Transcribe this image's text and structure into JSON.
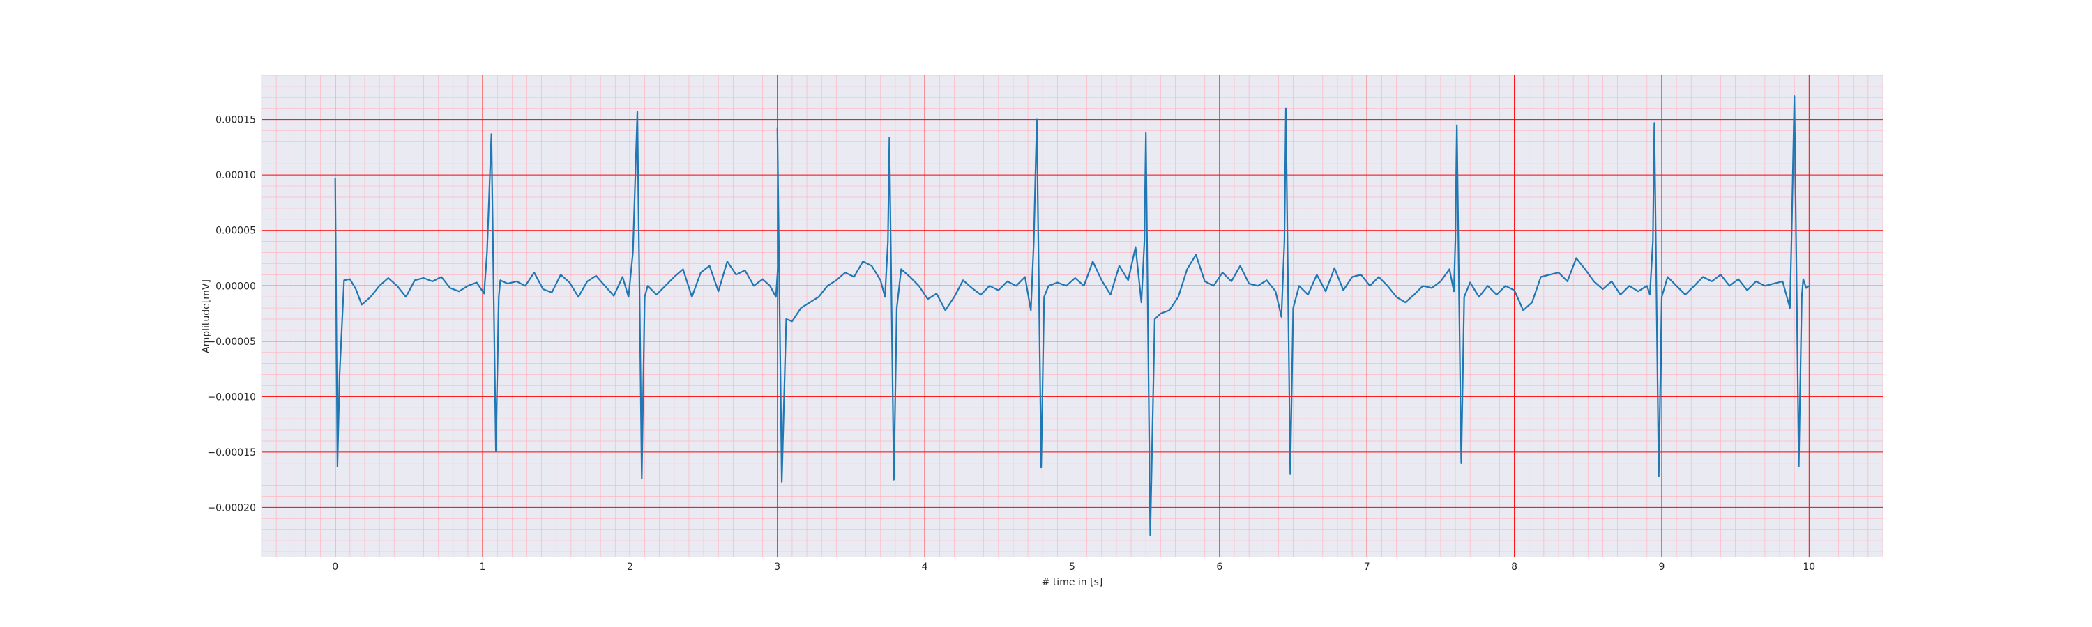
{
  "chart_data": {
    "type": "line",
    "title": "",
    "xlabel": "# time in [s]",
    "ylabel": "Amplitude[mV]",
    "xlim": [
      -0.5,
      10.5
    ],
    "ylim": [
      -0.000245,
      0.00019
    ],
    "xticks": [
      0,
      1,
      2,
      3,
      4,
      5,
      6,
      7,
      8,
      9,
      10
    ],
    "xtick_labels": [
      "0",
      "1",
      "2",
      "3",
      "4",
      "5",
      "6",
      "7",
      "8",
      "9",
      "10"
    ],
    "yticks": [
      -0.0002,
      -0.00015,
      -0.0001,
      -5e-05,
      0.0,
      5e-05,
      0.0001,
      0.00015
    ],
    "ytick_labels": [
      "−0.00020",
      "−0.00015",
      "−0.00010",
      "−0.00005",
      "0.00000",
      "0.00005",
      "0.00010",
      "0.00015"
    ],
    "grid": true,
    "major_grid_color": "#ff0000",
    "minor_grid_color": "#ffb6c1",
    "background_color": "#eaeaf2",
    "line_color": "#1f77b4",
    "series": [
      {
        "values": [
          [
            0.0,
            9.7e-05
          ],
          [
            0.015,
            -0.000163
          ],
          [
            0.03,
            -8e-05
          ],
          [
            0.06,
            5e-06
          ],
          [
            0.1,
            6e-06
          ],
          [
            0.14,
            -3e-06
          ],
          [
            0.18,
            -1.7e-05
          ],
          [
            0.24,
            -1e-05
          ],
          [
            0.3,
            0.0
          ],
          [
            0.36,
            7e-06
          ],
          [
            0.42,
            0.0
          ],
          [
            0.48,
            -1e-05
          ],
          [
            0.54,
            5e-06
          ],
          [
            0.6,
            7e-06
          ],
          [
            0.66,
            4e-06
          ],
          [
            0.72,
            8e-06
          ],
          [
            0.78,
            -2e-06
          ],
          [
            0.84,
            -5e-06
          ],
          [
            0.9,
            0.0
          ],
          [
            0.96,
            3e-06
          ],
          [
            1.01,
            -7e-06
          ],
          [
            1.03,
            3e-05
          ],
          [
            1.06,
            0.000137
          ],
          [
            1.09,
            -0.000149
          ],
          [
            1.11,
            -1e-05
          ],
          [
            1.12,
            5e-06
          ],
          [
            1.17,
            2e-06
          ],
          [
            1.23,
            4e-06
          ],
          [
            1.29,
            0.0
          ],
          [
            1.35,
            1.2e-05
          ],
          [
            1.41,
            -3e-06
          ],
          [
            1.47,
            -6e-06
          ],
          [
            1.53,
            1e-05
          ],
          [
            1.59,
            3e-06
          ],
          [
            1.65,
            -1e-05
          ],
          [
            1.71,
            4e-06
          ],
          [
            1.77,
            9e-06
          ],
          [
            1.83,
            0.0
          ],
          [
            1.89,
            -9e-06
          ],
          [
            1.95,
            8e-06
          ],
          [
            1.99,
            -1e-05
          ],
          [
            2.02,
            3e-05
          ],
          [
            2.05,
            0.000157
          ],
          [
            2.08,
            -0.000174
          ],
          [
            2.1,
            -1e-05
          ],
          [
            2.12,
            0.0
          ],
          [
            2.18,
            -8e-06
          ],
          [
            2.24,
            0.0
          ],
          [
            2.3,
            8e-06
          ],
          [
            2.36,
            1.5e-05
          ],
          [
            2.42,
            -1e-05
          ],
          [
            2.48,
            1.2e-05
          ],
          [
            2.54,
            1.8e-05
          ],
          [
            2.6,
            -5e-06
          ],
          [
            2.66,
            2.2e-05
          ],
          [
            2.72,
            1e-05
          ],
          [
            2.78,
            1.4e-05
          ],
          [
            2.84,
            0.0
          ],
          [
            2.9,
            6e-06
          ],
          [
            2.95,
            0.0
          ],
          [
            2.99,
            -1e-05
          ],
          [
            3.01,
            3e-05
          ],
          [
            3.0,
            0.000142
          ],
          [
            3.03,
            -0.000177
          ],
          [
            3.06,
            -3e-05
          ],
          [
            3.1,
            -3.2e-05
          ],
          [
            3.16,
            -2e-05
          ],
          [
            3.22,
            -1.5e-05
          ],
          [
            3.28,
            -1e-05
          ],
          [
            3.34,
            0.0
          ],
          [
            3.4,
            5e-06
          ],
          [
            3.46,
            1.2e-05
          ],
          [
            3.52,
            8e-06
          ],
          [
            3.58,
            2.2e-05
          ],
          [
            3.64,
            1.8e-05
          ],
          [
            3.7,
            5e-06
          ],
          [
            3.73,
            -1e-05
          ],
          [
            3.75,
            4e-05
          ],
          [
            3.76,
            0.000134
          ],
          [
            3.79,
            -0.000175
          ],
          [
            3.81,
            -2e-05
          ],
          [
            3.84,
            1.5e-05
          ],
          [
            3.9,
            8e-06
          ],
          [
            3.96,
            0.0
          ],
          [
            4.02,
            -1.2e-05
          ],
          [
            4.08,
            -7e-06
          ],
          [
            4.14,
            -2.2e-05
          ],
          [
            4.2,
            -1e-05
          ],
          [
            4.26,
            5e-06
          ],
          [
            4.32,
            -2e-06
          ],
          [
            4.38,
            -8e-06
          ],
          [
            4.44,
            0.0
          ],
          [
            4.5,
            -4e-06
          ],
          [
            4.56,
            4e-06
          ],
          [
            4.62,
            0.0
          ],
          [
            4.68,
            8e-06
          ],
          [
            4.72,
            -2.2e-05
          ],
          [
            4.74,
            4e-05
          ],
          [
            4.76,
            0.00015
          ],
          [
            4.79,
            -0.000164
          ],
          [
            4.81,
            -1e-05
          ],
          [
            4.84,
            0.0
          ],
          [
            4.9,
            3e-06
          ],
          [
            4.96,
            0.0
          ],
          [
            5.02,
            7e-06
          ],
          [
            5.08,
            0.0
          ],
          [
            5.14,
            2.2e-05
          ],
          [
            5.2,
            5e-06
          ],
          [
            5.26,
            -8e-06
          ],
          [
            5.32,
            1.8e-05
          ],
          [
            5.38,
            5e-06
          ],
          [
            5.43,
            3.5e-05
          ],
          [
            5.47,
            -1.5e-05
          ],
          [
            5.49,
            4e-05
          ],
          [
            5.5,
            0.000138
          ],
          [
            5.53,
            -0.000225
          ],
          [
            5.56,
            -3e-05
          ],
          [
            5.6,
            -2.5e-05
          ],
          [
            5.66,
            -2.2e-05
          ],
          [
            5.72,
            -1e-05
          ],
          [
            5.78,
            1.5e-05
          ],
          [
            5.84,
            2.8e-05
          ],
          [
            5.9,
            4e-06
          ],
          [
            5.96,
            0.0
          ],
          [
            6.02,
            1.2e-05
          ],
          [
            6.08,
            4e-06
          ],
          [
            6.14,
            1.8e-05
          ],
          [
            6.2,
            2e-06
          ],
          [
            6.26,
            0.0
          ],
          [
            6.32,
            5e-06
          ],
          [
            6.38,
            -5e-06
          ],
          [
            6.42,
            -2.8e-05
          ],
          [
            6.44,
            4e-05
          ],
          [
            6.45,
            0.00016
          ],
          [
            6.48,
            -0.00017
          ],
          [
            6.5,
            -2e-05
          ],
          [
            6.54,
            0.0
          ],
          [
            6.6,
            -8e-06
          ],
          [
            6.66,
            1e-05
          ],
          [
            6.72,
            -5e-06
          ],
          [
            6.78,
            1.6e-05
          ],
          [
            6.84,
            -4e-06
          ],
          [
            6.9,
            8e-06
          ],
          [
            6.96,
            1e-05
          ],
          [
            7.02,
            0.0
          ],
          [
            7.08,
            8e-06
          ],
          [
            7.14,
            0.0
          ],
          [
            7.2,
            -1e-05
          ],
          [
            7.26,
            -1.5e-05
          ],
          [
            7.32,
            -8e-06
          ],
          [
            7.38,
            0.0
          ],
          [
            7.44,
            -2e-06
          ],
          [
            7.5,
            4e-06
          ],
          [
            7.56,
            1.5e-05
          ],
          [
            7.59,
            -5e-06
          ],
          [
            7.6,
            4e-05
          ],
          [
            7.61,
            0.000145
          ],
          [
            7.64,
            -0.00016
          ],
          [
            7.66,
            -1e-05
          ],
          [
            7.7,
            3e-06
          ],
          [
            7.76,
            -1e-05
          ],
          [
            7.82,
            0.0
          ],
          [
            7.88,
            -8e-06
          ],
          [
            7.94,
            0.0
          ],
          [
            8.0,
            -4e-06
          ],
          [
            8.06,
            -2.2e-05
          ],
          [
            8.12,
            -1.5e-05
          ],
          [
            8.18,
            8e-06
          ],
          [
            8.24,
            1e-05
          ],
          [
            8.3,
            1.2e-05
          ],
          [
            8.36,
            4e-06
          ],
          [
            8.42,
            2.5e-05
          ],
          [
            8.48,
            1.5e-05
          ],
          [
            8.54,
            4e-06
          ],
          [
            8.6,
            -3e-06
          ],
          [
            8.66,
            4e-06
          ],
          [
            8.72,
            -8e-06
          ],
          [
            8.78,
            0.0
          ],
          [
            8.84,
            -5e-06
          ],
          [
            8.9,
            0.0
          ],
          [
            8.92,
            -8e-06
          ],
          [
            8.94,
            4e-05
          ],
          [
            8.95,
            0.000147
          ],
          [
            8.98,
            -0.000172
          ],
          [
            9.0,
            -1e-05
          ],
          [
            9.04,
            8e-06
          ],
          [
            9.1,
            0.0
          ],
          [
            9.16,
            -8e-06
          ],
          [
            9.22,
            0.0
          ],
          [
            9.28,
            8e-06
          ],
          [
            9.34,
            4e-06
          ],
          [
            9.4,
            1e-05
          ],
          [
            9.46,
            0.0
          ],
          [
            9.52,
            6e-06
          ],
          [
            9.58,
            -4e-06
          ],
          [
            9.64,
            4e-06
          ],
          [
            9.7,
            0.0
          ],
          [
            9.76,
            2e-06
          ],
          [
            9.82,
            4e-06
          ],
          [
            9.87,
            -2e-05
          ],
          [
            9.88,
            4e-05
          ],
          [
            9.9,
            0.000171
          ],
          [
            9.93,
            -0.000163
          ],
          [
            9.95,
            -1e-05
          ],
          [
            9.96,
            6e-06
          ],
          [
            9.98,
            -2e-06
          ],
          [
            10.0,
            0.0
          ]
        ]
      }
    ]
  }
}
